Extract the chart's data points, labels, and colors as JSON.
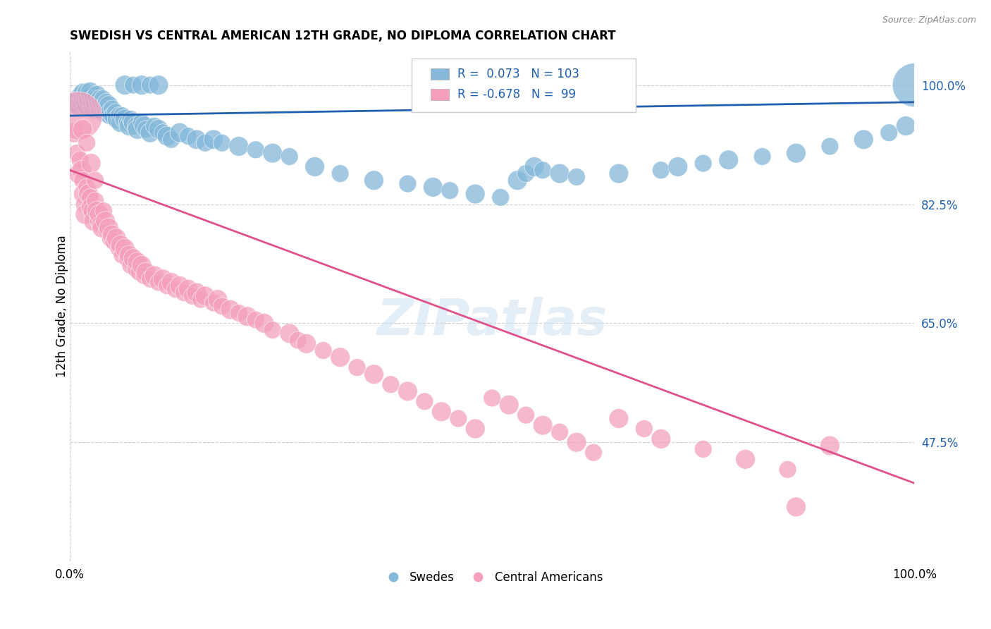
{
  "title": "SWEDISH VS CENTRAL AMERICAN 12TH GRADE, NO DIPLOMA CORRELATION CHART",
  "source": "Source: ZipAtlas.com",
  "ylabel": "12th Grade, No Diploma",
  "xlim": [
    0.0,
    1.0
  ],
  "ylim": [
    0.3,
    1.05
  ],
  "yticks": [
    0.475,
    0.65,
    0.825,
    1.0
  ],
  "ytick_labels": [
    "47.5%",
    "65.0%",
    "82.5%",
    "100.0%"
  ],
  "xtick_labels": [
    "0.0%",
    "100.0%"
  ],
  "xticks": [
    0.0,
    1.0
  ],
  "legend_r_blue": "0.073",
  "legend_n_blue": "103",
  "legend_r_pink": "-0.678",
  "legend_n_pink": "99",
  "blue_color": "#85b8d9",
  "pink_color": "#f4a0bc",
  "blue_line_color": "#2060b0",
  "pink_line_color": "#e0508a",
  "watermark": "ZIPatlas",
  "blue_line": [
    0.0,
    1.0,
    0.955,
    0.975
  ],
  "pink_line": [
    0.0,
    1.0,
    0.875,
    0.415
  ],
  "blue_scatter_x": [
    0.005,
    0.008,
    0.01,
    0.012,
    0.014,
    0.015,
    0.016,
    0.017,
    0.018,
    0.019,
    0.02,
    0.021,
    0.022,
    0.023,
    0.024,
    0.025,
    0.026,
    0.027,
    0.028,
    0.029,
    0.03,
    0.031,
    0.032,
    0.033,
    0.034,
    0.035,
    0.036,
    0.037,
    0.038,
    0.039,
    0.04,
    0.041,
    0.042,
    0.043,
    0.044,
    0.045,
    0.046,
    0.047,
    0.048,
    0.05,
    0.052,
    0.054,
    0.056,
    0.058,
    0.06,
    0.062,
    0.065,
    0.068,
    0.07,
    0.072,
    0.075,
    0.078,
    0.08,
    0.085,
    0.088,
    0.09,
    0.095,
    0.1,
    0.105,
    0.11,
    0.115,
    0.12,
    0.13,
    0.14,
    0.15,
    0.16,
    0.17,
    0.18,
    0.2,
    0.22,
    0.24,
    0.26,
    0.29,
    0.32,
    0.36,
    0.4,
    0.43,
    0.45,
    0.48,
    0.51,
    0.53,
    0.54,
    0.55,
    0.56,
    0.58,
    0.6,
    0.65,
    0.7,
    0.72,
    0.75,
    0.78,
    0.82,
    0.86,
    0.9,
    0.94,
    0.97,
    0.99,
    1.0,
    0.065,
    0.075,
    0.085,
    0.095,
    0.105
  ],
  "blue_scatter_y": [
    0.975,
    0.98,
    0.97,
    0.985,
    0.975,
    0.99,
    0.98,
    0.985,
    0.975,
    0.99,
    0.97,
    0.975,
    0.98,
    0.985,
    0.99,
    0.97,
    0.975,
    0.98,
    0.965,
    0.97,
    0.975,
    0.98,
    0.985,
    0.97,
    0.975,
    0.98,
    0.965,
    0.97,
    0.975,
    0.98,
    0.96,
    0.965,
    0.97,
    0.975,
    0.96,
    0.965,
    0.97,
    0.955,
    0.96,
    0.965,
    0.955,
    0.96,
    0.95,
    0.955,
    0.945,
    0.955,
    0.95,
    0.945,
    0.94,
    0.95,
    0.945,
    0.94,
    0.935,
    0.945,
    0.94,
    0.935,
    0.93,
    0.94,
    0.935,
    0.93,
    0.925,
    0.92,
    0.93,
    0.925,
    0.92,
    0.915,
    0.92,
    0.915,
    0.91,
    0.905,
    0.9,
    0.895,
    0.88,
    0.87,
    0.86,
    0.855,
    0.85,
    0.845,
    0.84,
    0.835,
    0.86,
    0.87,
    0.88,
    0.875,
    0.87,
    0.865,
    0.87,
    0.875,
    0.88,
    0.885,
    0.89,
    0.895,
    0.9,
    0.91,
    0.92,
    0.93,
    0.94,
    1.0,
    1.0,
    1.0,
    1.0,
    1.0,
    1.0
  ],
  "blue_scatter_sizes": [
    50,
    40,
    50,
    40,
    50,
    40,
    50,
    40,
    50,
    40,
    50,
    40,
    50,
    40,
    50,
    40,
    50,
    40,
    50,
    40,
    50,
    40,
    50,
    40,
    50,
    40,
    50,
    40,
    50,
    40,
    50,
    40,
    50,
    40,
    50,
    40,
    50,
    40,
    50,
    40,
    50,
    40,
    50,
    40,
    50,
    40,
    50,
    40,
    50,
    40,
    50,
    40,
    50,
    40,
    50,
    40,
    50,
    40,
    50,
    40,
    50,
    40,
    50,
    40,
    50,
    40,
    50,
    40,
    50,
    40,
    50,
    40,
    50,
    40,
    50,
    40,
    50,
    40,
    50,
    40,
    50,
    40,
    50,
    40,
    50,
    40,
    50,
    40,
    50,
    40,
    50,
    40,
    50,
    40,
    50,
    40,
    50,
    250,
    50,
    40,
    50,
    40,
    50
  ],
  "pink_scatter_x": [
    0.005,
    0.008,
    0.01,
    0.012,
    0.014,
    0.015,
    0.016,
    0.017,
    0.018,
    0.02,
    0.022,
    0.024,
    0.025,
    0.026,
    0.028,
    0.03,
    0.032,
    0.034,
    0.035,
    0.036,
    0.038,
    0.04,
    0.042,
    0.044,
    0.046,
    0.048,
    0.05,
    0.052,
    0.055,
    0.058,
    0.06,
    0.062,
    0.065,
    0.068,
    0.07,
    0.072,
    0.075,
    0.078,
    0.08,
    0.082,
    0.085,
    0.088,
    0.09,
    0.095,
    0.1,
    0.105,
    0.11,
    0.115,
    0.12,
    0.125,
    0.13,
    0.135,
    0.14,
    0.145,
    0.15,
    0.155,
    0.16,
    0.17,
    0.175,
    0.18,
    0.19,
    0.2,
    0.21,
    0.22,
    0.23,
    0.24,
    0.26,
    0.27,
    0.28,
    0.3,
    0.32,
    0.34,
    0.36,
    0.38,
    0.4,
    0.42,
    0.44,
    0.46,
    0.48,
    0.5,
    0.52,
    0.54,
    0.56,
    0.58,
    0.6,
    0.62,
    0.65,
    0.68,
    0.7,
    0.75,
    0.8,
    0.85,
    0.9,
    0.01,
    0.015,
    0.02,
    0.025,
    0.03,
    0.86
  ],
  "pink_scatter_y": [
    0.93,
    0.9,
    0.87,
    0.89,
    0.875,
    0.86,
    0.84,
    0.825,
    0.81,
    0.85,
    0.84,
    0.835,
    0.82,
    0.815,
    0.8,
    0.83,
    0.815,
    0.8,
    0.81,
    0.795,
    0.79,
    0.815,
    0.8,
    0.785,
    0.79,
    0.775,
    0.78,
    0.77,
    0.775,
    0.76,
    0.765,
    0.75,
    0.76,
    0.745,
    0.75,
    0.735,
    0.745,
    0.73,
    0.74,
    0.725,
    0.735,
    0.72,
    0.725,
    0.715,
    0.72,
    0.71,
    0.715,
    0.705,
    0.71,
    0.7,
    0.705,
    0.695,
    0.7,
    0.69,
    0.695,
    0.685,
    0.69,
    0.68,
    0.685,
    0.675,
    0.67,
    0.665,
    0.66,
    0.655,
    0.65,
    0.64,
    0.635,
    0.625,
    0.62,
    0.61,
    0.6,
    0.585,
    0.575,
    0.56,
    0.55,
    0.535,
    0.52,
    0.51,
    0.495,
    0.54,
    0.53,
    0.515,
    0.5,
    0.49,
    0.475,
    0.46,
    0.51,
    0.495,
    0.48,
    0.465,
    0.45,
    0.435,
    0.47,
    0.955,
    0.935,
    0.915,
    0.885,
    0.86,
    0.38
  ],
  "pink_scatter_sizes": [
    50,
    40,
    50,
    40,
    50,
    40,
    50,
    40,
    50,
    40,
    50,
    40,
    50,
    40,
    50,
    40,
    50,
    40,
    50,
    40,
    50,
    40,
    50,
    40,
    50,
    40,
    50,
    40,
    50,
    40,
    50,
    40,
    50,
    40,
    50,
    40,
    50,
    40,
    50,
    40,
    50,
    40,
    50,
    40,
    50,
    40,
    50,
    40,
    50,
    40,
    50,
    40,
    50,
    40,
    50,
    40,
    50,
    40,
    50,
    40,
    50,
    40,
    50,
    40,
    50,
    40,
    50,
    40,
    50,
    40,
    50,
    40,
    50,
    40,
    50,
    40,
    50,
    40,
    50,
    40,
    50,
    40,
    50,
    40,
    50,
    40,
    50,
    40,
    50,
    40,
    50,
    40,
    50,
    300,
    50,
    40,
    50,
    40,
    50
  ]
}
